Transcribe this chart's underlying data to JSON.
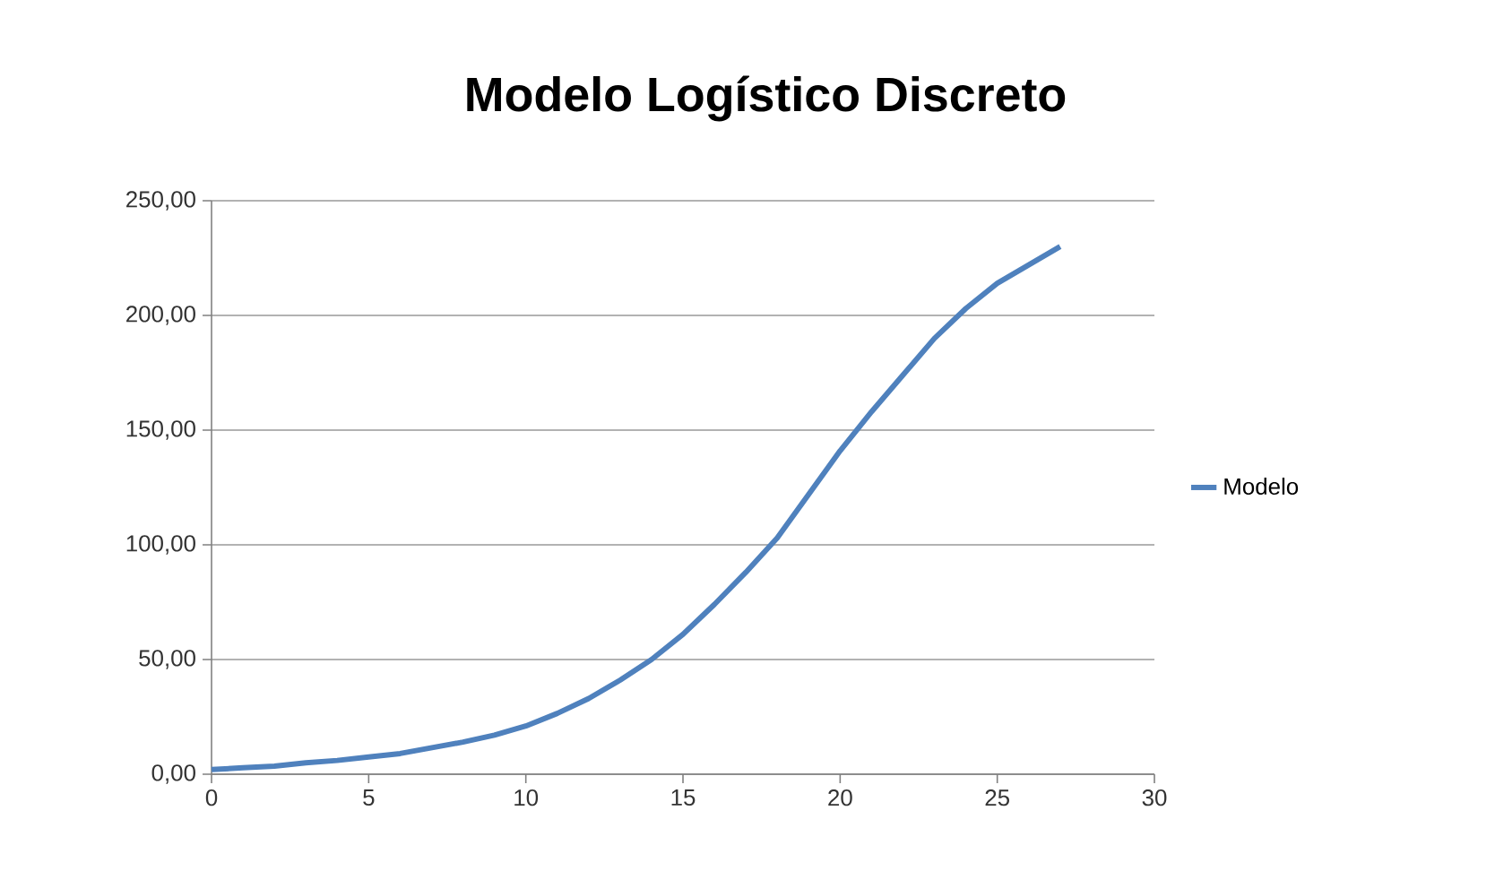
{
  "chart_data": {
    "type": "line",
    "title": "Modelo Logístico Discreto",
    "x": [
      0,
      1,
      2,
      3,
      4,
      5,
      6,
      7,
      8,
      9,
      10,
      11,
      12,
      13,
      14,
      15,
      16,
      17,
      18,
      19,
      20,
      21,
      22,
      23,
      24,
      25,
      26,
      27
    ],
    "series": [
      {
        "name": "Modelo",
        "color": "#4f81bd",
        "values": [
          2,
          2.8,
          3.5,
          5,
          6,
          7.5,
          9,
          11.5,
          14,
          17,
          21,
          26.5,
          33,
          41,
          50,
          61,
          74,
          88,
          103,
          122,
          141,
          158,
          174,
          190,
          203,
          214,
          222,
          230
        ]
      }
    ],
    "xlim": [
      0,
      30
    ],
    "xticks": [
      0,
      5,
      10,
      15,
      20,
      25,
      30
    ],
    "ylim": [
      0,
      250
    ],
    "yticks": [
      {
        "value": 0,
        "label": "0,00"
      },
      {
        "value": 50,
        "label": "50,00"
      },
      {
        "value": 100,
        "label": "100,00"
      },
      {
        "value": 150,
        "label": "150,00"
      },
      {
        "value": 200,
        "label": "200,00"
      },
      {
        "value": 250,
        "label": "250,00"
      }
    ],
    "grid": "y",
    "legend": "right",
    "marker": "none",
    "line_style": "solid"
  }
}
